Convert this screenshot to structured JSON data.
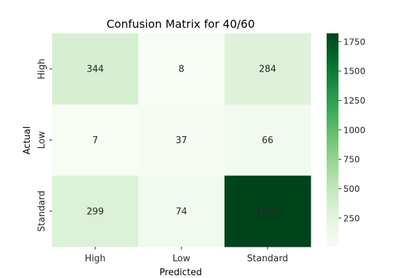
{
  "chart_data": {
    "type": "heatmap",
    "title": "Confusion Matrix for 40/60",
    "xlabel": "Predicted",
    "ylabel": "Actual",
    "x_categories": [
      "High",
      "Low",
      "Standard"
    ],
    "y_categories": [
      "High",
      "Low",
      "Standard"
    ],
    "values": [
      [
        344,
        8,
        284
      ],
      [
        7,
        37,
        66
      ],
      [
        299,
        74,
        1820
      ]
    ],
    "colormap": "Greens",
    "color_low": "#f7fcf5",
    "color_high": "#00441b",
    "colorbar": {
      "range": [
        7,
        1820
      ],
      "ticks": [
        250,
        500,
        750,
        1000,
        1250,
        1500,
        1750
      ],
      "tick_labels": [
        "250",
        "500",
        "750",
        "1000",
        "1250",
        "1500",
        "1750"
      ]
    },
    "annotated": true,
    "grid": false
  }
}
